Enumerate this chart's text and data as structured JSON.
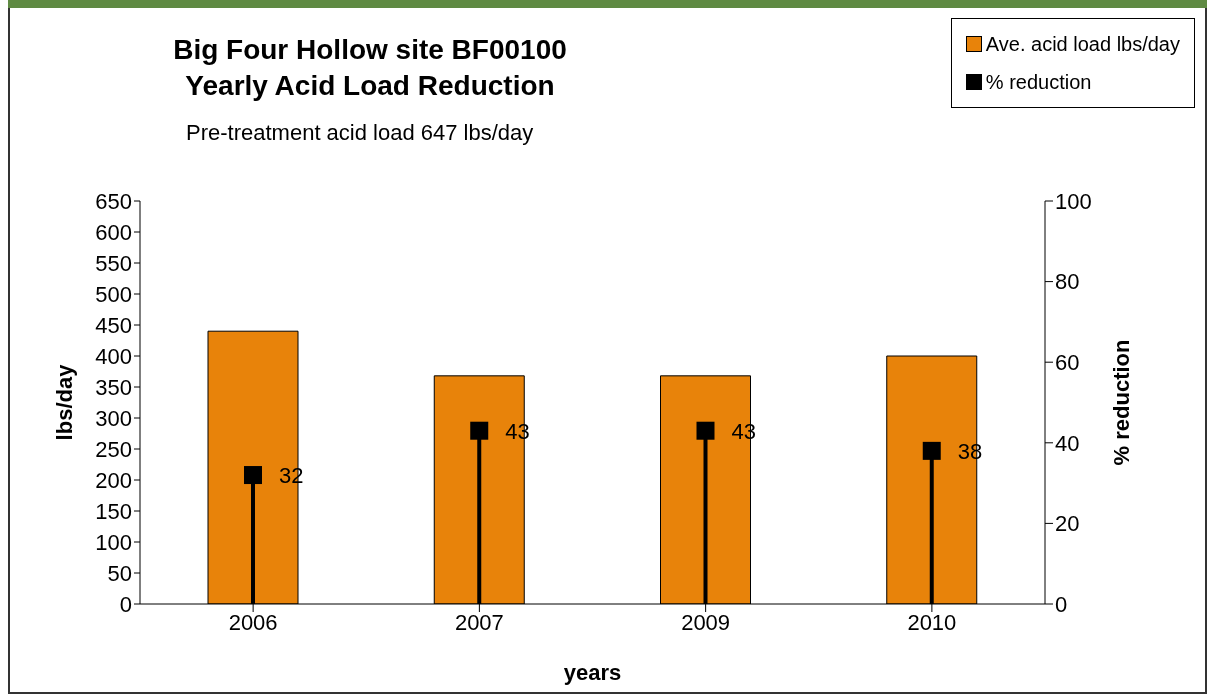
{
  "chart_data": {
    "type": "bar",
    "title": "Big Four Hollow site BF00100\nYearly Acid Load Reduction",
    "subtitle": "Pre-treatment acid load 647 lbs/day",
    "xlabel": "years",
    "ylabel": "lbs/day",
    "y2label": "% reduction",
    "categories": [
      "2006",
      "2007",
      "2009",
      "2010"
    ],
    "series": [
      {
        "name": "Ave. acid load lbs/day",
        "color": "#e8830a",
        "values": [
          440,
          368,
          368,
          400
        ]
      },
      {
        "name": "% reduction",
        "type": "lollipop",
        "axis": "y2",
        "color": "#000000",
        "marker": "square",
        "values": [
          32,
          43,
          43,
          38
        ],
        "value_labels": [
          "32",
          "43",
          "43",
          "38"
        ]
      }
    ],
    "ylim": [
      0,
      650
    ],
    "yticks": [
      0,
      50,
      100,
      150,
      200,
      250,
      300,
      350,
      400,
      450,
      500,
      550,
      600,
      650
    ],
    "y2lim": [
      0,
      100
    ],
    "y2ticks": [
      0,
      20,
      40,
      60,
      80,
      100
    ],
    "grid": false,
    "legend": "top right"
  }
}
